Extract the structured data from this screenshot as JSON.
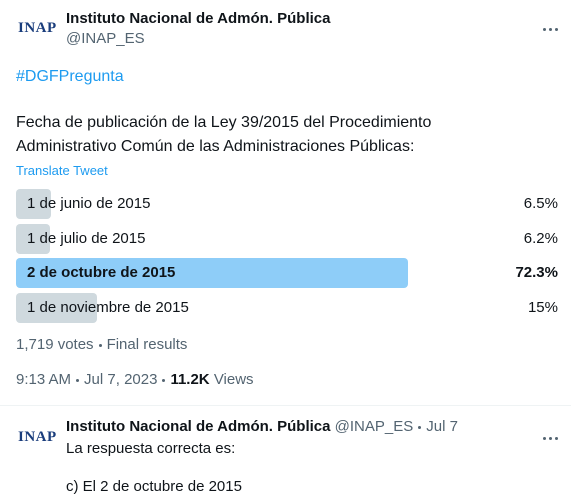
{
  "tweet": {
    "logo": "INAP",
    "name": "Instituto Nacional de Admón. Pública",
    "handle": "@INAP_ES",
    "hashtag": "#DGFPregunta",
    "text_lines": [
      "Fecha de publicación de la Ley 39/2015 del Procedimiento",
      "Administrativo Común de las Administraciones Públicas:"
    ],
    "translate": "Translate Tweet",
    "poll": {
      "options": [
        "1 de junio de 2015",
        "1 de julio de 2015",
        "2 de octubre de 2015",
        "1 de noviembre de 2015"
      ],
      "values": [
        6.5,
        6.2,
        72.3,
        15
      ],
      "value_labels": [
        "6.5%",
        "6.2%",
        "72.3%",
        "15%"
      ],
      "winner": 2,
      "votes": "1,719 votes",
      "status": "Final results"
    },
    "time": "9:13 AM",
    "date": "Jul 7, 2023",
    "views_count": "11.2K",
    "views_label": "Views"
  },
  "reply": {
    "logo": "INAP",
    "name": "Instituto Nacional de Admón. Pública",
    "handle": "@INAP_ES",
    "date": "Jul 7",
    "lines": [
      "La respuesta correcta es:",
      "c) El 2 de octubre de 2015"
    ]
  }
}
